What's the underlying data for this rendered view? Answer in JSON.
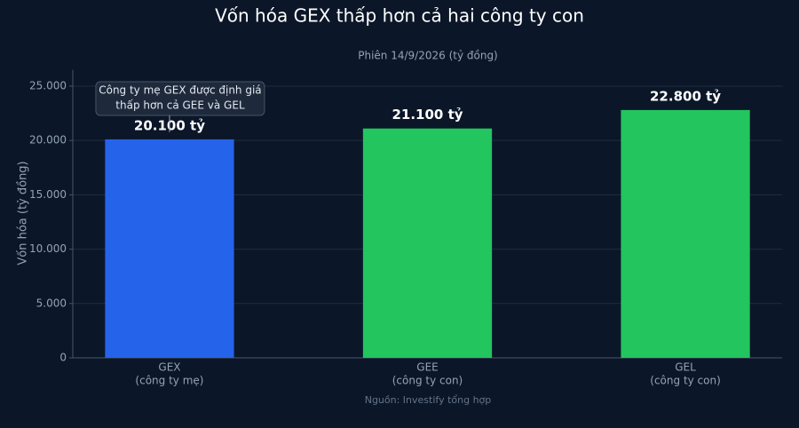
{
  "chart_data": {
    "type": "bar",
    "title": "Vốn hóa GEX thấp hơn cả hai công ty con",
    "subtitle": "Phiên 14/9/2026 (tỷ đồng)",
    "y_label": "Vốn hóa (tỷ đồng)",
    "source": "Nguồn: Investify tổng hợp",
    "categories": [
      [
        "GEX",
        "(công ty mẹ)"
      ],
      [
        "GEE",
        "(công ty con)"
      ],
      [
        "GEL",
        "(công ty con)"
      ]
    ],
    "values": [
      20100,
      21100,
      22800
    ],
    "value_labels": [
      "20.100 tỷ",
      "21.100 tỷ",
      "22.800 tỷ"
    ],
    "colors": [
      "#2563eb",
      "#22c55e",
      "#22c55e"
    ],
    "ylim": [
      0,
      26500
    ],
    "yticks": [
      0,
      {
        "value": 5000,
        "label": "5.000"
      },
      {
        "value": 10000,
        "label": "10.000"
      },
      {
        "value": 15000,
        "label": "15.000"
      },
      {
        "value": 20000,
        "label": "20.000"
      },
      {
        "value": 25000,
        "label": "25.000"
      }
    ],
    "grid": true,
    "annotation": [
      "Công ty mẹ GEX được định giá",
      "thấp hơn cả GEE và GEL"
    ]
  }
}
